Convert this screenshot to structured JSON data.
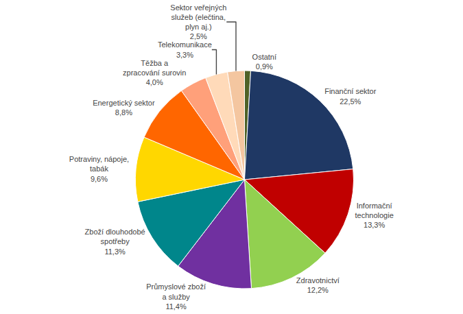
{
  "chart_data": {
    "type": "pie",
    "categories": [
      "Ostatní",
      "Finanční sektor",
      "Informační\ntechnologie",
      "Zdravotnictví",
      "Průmyslové zboží\na služby",
      "Zboží dlouhodobé\nspotřeby",
      "Potraviny, nápoje,\ntabák",
      "Energetický sektor",
      "Těžba a\nzpracování surovin",
      "Telekomunikace",
      "Sektor veřejných\nslužeb (elečtina,\nplyn aj.)"
    ],
    "values": [
      0.9,
      22.5,
      13.3,
      12.2,
      11.4,
      11.3,
      9.6,
      8.8,
      4.0,
      3.3,
      2.5
    ],
    "value_labels": [
      "0,9%",
      "22,5%",
      "13,3%",
      "12,2%",
      "11,4%",
      "11,3%",
      "9,6%",
      "8,8%",
      "4,0%",
      "3,3%",
      "2,5%"
    ],
    "colors": [
      "#4F6228",
      "#1F3864",
      "#C00000",
      "#92D050",
      "#7030A0",
      "#00868B",
      "#FFD700",
      "#FF6600",
      "#FFA07A",
      "#FFDAB9",
      "#F4C6A0"
    ],
    "data_labels": true
  }
}
